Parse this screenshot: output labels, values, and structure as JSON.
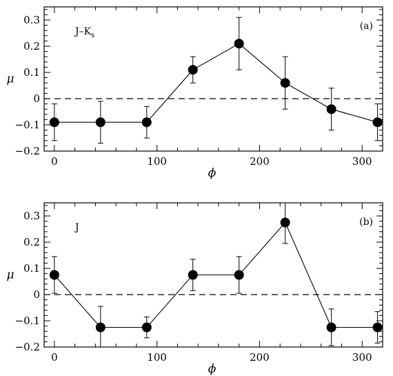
{
  "chart_data": [
    {
      "type": "scatter",
      "panel_tag": "(a)",
      "band_label": {
        "main": "J–K",
        "sub": "s"
      },
      "xlabel": "ϕ",
      "ylabel": "μ",
      "xlim": [
        -10,
        320
      ],
      "ylim": [
        -0.2,
        0.35
      ],
      "xticks": [
        0,
        100,
        200,
        300
      ],
      "xtick_labels": [
        "0",
        "100",
        "200",
        "300"
      ],
      "yticks": [
        -0.2,
        -0.1,
        0,
        0.1,
        0.2,
        0.3
      ],
      "ytick_labels": [
        "−0.2",
        "−0.1",
        "0",
        "0.1",
        "0.2",
        "0.3"
      ],
      "reference_line": 0,
      "series": [
        {
          "x": [
            0,
            45,
            90,
            135,
            180,
            225,
            270,
            315
          ],
          "y": [
            -0.09,
            -0.09,
            -0.09,
            0.11,
            0.21,
            0.06,
            -0.04,
            -0.09
          ],
          "yerr": [
            0.07,
            0.08,
            0.06,
            0.05,
            0.1,
            0.1,
            0.08,
            0.07
          ]
        }
      ]
    },
    {
      "type": "scatter",
      "panel_tag": "(b)",
      "band_label": {
        "main": "J",
        "sub": ""
      },
      "xlabel": "ϕ",
      "ylabel": "μ",
      "xlim": [
        -10,
        320
      ],
      "ylim": [
        -0.2,
        0.35
      ],
      "xticks": [
        0,
        100,
        200,
        300
      ],
      "xtick_labels": [
        "0",
        "100",
        "200",
        "300"
      ],
      "yticks": [
        -0.2,
        -0.1,
        0,
        0.1,
        0.2,
        0.3
      ],
      "ytick_labels": [
        "−0.2",
        "−0.1",
        "0",
        "0.1",
        "0.2",
        "0.3"
      ],
      "reference_line": 0,
      "series": [
        {
          "x": [
            0,
            45,
            90,
            135,
            180,
            225,
            270,
            315
          ],
          "y": [
            0.075,
            -0.125,
            -0.125,
            0.075,
            0.075,
            0.275,
            -0.125,
            -0.125
          ],
          "yerr": [
            0.07,
            0.08,
            0.04,
            0.06,
            0.07,
            0.08,
            0.07,
            0.06
          ]
        }
      ]
    }
  ]
}
